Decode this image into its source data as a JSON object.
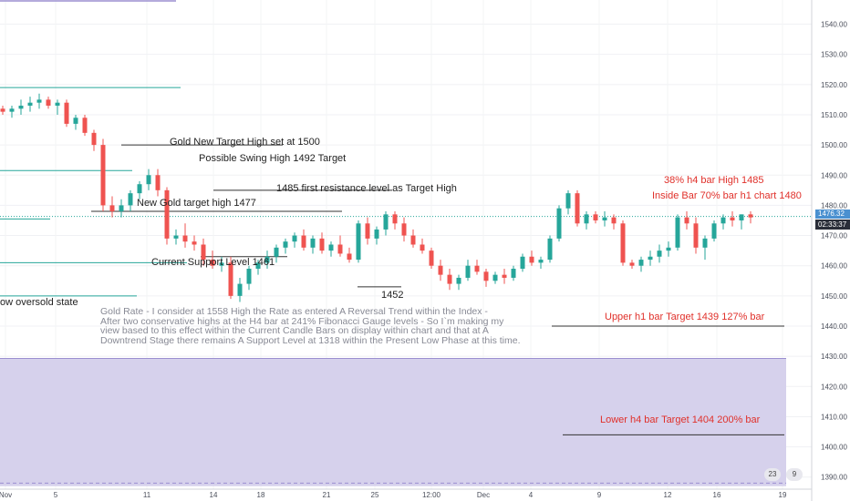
{
  "chart_data": {
    "type": "candlestick",
    "title": "",
    "y_axis": {
      "range": [
        1386,
        1548
      ],
      "ticks": [
        "1390.00",
        "1400.00",
        "1410.00",
        "1420.00",
        "1430.00",
        "1440.00",
        "1450.00",
        "1460.00",
        "1470.00",
        "1480.00",
        "1490.00",
        "1500.00",
        "1510.00",
        "1520.00",
        "1530.00",
        "1540.00"
      ]
    },
    "x_axis": {
      "ticks": [
        "Nov",
        "5",
        "11",
        "14",
        "18",
        "21",
        "25",
        "12:00",
        "Dec",
        "4",
        "9",
        "12",
        "16",
        "19"
      ]
    },
    "last_price": {
      "value": 1476.32,
      "label": "1476.32",
      "countdown": "02:33:37"
    },
    "candles": [
      [
        1512,
        1513,
        1510,
        1511
      ],
      [
        1511,
        1513,
        1509,
        1512
      ],
      [
        1512,
        1515,
        1510,
        1513
      ],
      [
        1513,
        1516,
        1511,
        1514
      ],
      [
        1514,
        1517,
        1512,
        1515
      ],
      [
        1515,
        1516,
        1512,
        1513
      ],
      [
        1513,
        1515,
        1510,
        1514
      ],
      [
        1514,
        1515,
        1506,
        1507
      ],
      [
        1507,
        1510,
        1505,
        1509
      ],
      [
        1509,
        1510,
        1503,
        1504
      ],
      [
        1504,
        1505,
        1498,
        1500
      ],
      [
        1500,
        1502,
        1478,
        1480
      ],
      [
        1480,
        1483,
        1476,
        1478
      ],
      [
        1478,
        1482,
        1476,
        1480
      ],
      [
        1480,
        1485,
        1478,
        1484
      ],
      [
        1484,
        1488,
        1482,
        1487
      ],
      [
        1487,
        1492,
        1485,
        1490
      ],
      [
        1490,
        1492,
        1483,
        1485
      ],
      [
        1485,
        1486,
        1467,
        1469
      ],
      [
        1469,
        1472,
        1467,
        1470
      ],
      [
        1470,
        1474,
        1466,
        1468
      ],
      [
        1468,
        1470,
        1465,
        1467
      ],
      [
        1467,
        1469,
        1460,
        1462
      ],
      [
        1462,
        1465,
        1459,
        1460
      ],
      [
        1460,
        1463,
        1458,
        1461
      ],
      [
        1461,
        1463,
        1449,
        1450
      ],
      [
        1450,
        1456,
        1448,
        1454
      ],
      [
        1454,
        1460,
        1452,
        1459
      ],
      [
        1459,
        1462,
        1457,
        1461
      ],
      [
        1461,
        1465,
        1459,
        1463
      ],
      [
        1463,
        1467,
        1461,
        1466
      ],
      [
        1466,
        1469,
        1464,
        1468
      ],
      [
        1468,
        1471,
        1466,
        1470
      ],
      [
        1470,
        1472,
        1465,
        1466
      ],
      [
        1466,
        1470,
        1464,
        1469
      ],
      [
        1469,
        1471,
        1464,
        1465
      ],
      [
        1465,
        1468,
        1463,
        1467
      ],
      [
        1467,
        1470,
        1463,
        1464
      ],
      [
        1464,
        1466,
        1461,
        1462
      ],
      [
        1462,
        1475,
        1461,
        1474
      ],
      [
        1474,
        1476,
        1467,
        1469
      ],
      [
        1469,
        1473,
        1467,
        1472
      ],
      [
        1472,
        1478,
        1470,
        1477
      ],
      [
        1477,
        1478,
        1472,
        1474
      ],
      [
        1474,
        1476,
        1468,
        1470
      ],
      [
        1470,
        1472,
        1466,
        1467
      ],
      [
        1467,
        1469,
        1464,
        1465
      ],
      [
        1465,
        1466,
        1459,
        1460
      ],
      [
        1460,
        1462,
        1455,
        1457
      ],
      [
        1457,
        1459,
        1452,
        1454
      ],
      [
        1454,
        1457,
        1452,
        1456
      ],
      [
        1456,
        1462,
        1455,
        1460
      ],
      [
        1460,
        1462,
        1457,
        1458
      ],
      [
        1458,
        1459,
        1453,
        1455
      ],
      [
        1455,
        1458,
        1454,
        1457
      ],
      [
        1457,
        1459,
        1454,
        1456
      ],
      [
        1456,
        1460,
        1455,
        1459
      ],
      [
        1459,
        1464,
        1458,
        1463
      ],
      [
        1463,
        1465,
        1460,
        1461
      ],
      [
        1461,
        1463,
        1459,
        1462
      ],
      [
        1462,
        1470,
        1461,
        1469
      ],
      [
        1469,
        1480,
        1468,
        1479
      ],
      [
        1479,
        1485,
        1477,
        1484
      ],
      [
        1484,
        1485,
        1473,
        1474
      ],
      [
        1474,
        1478,
        1472,
        1477
      ],
      [
        1477,
        1478,
        1474,
        1475
      ],
      [
        1475,
        1478,
        1473,
        1476
      ],
      [
        1476,
        1477,
        1472,
        1474
      ],
      [
        1474,
        1475,
        1460,
        1461
      ],
      [
        1461,
        1462,
        1459,
        1460
      ],
      [
        1460,
        1463,
        1458,
        1462
      ],
      [
        1462,
        1465,
        1460,
        1463
      ],
      [
        1463,
        1467,
        1461,
        1465
      ],
      [
        1465,
        1468,
        1463,
        1466
      ],
      [
        1466,
        1477,
        1465,
        1476
      ],
      [
        1476,
        1478,
        1472,
        1474
      ],
      [
        1474,
        1476,
        1464,
        1466
      ],
      [
        1466,
        1470,
        1462,
        1469
      ],
      [
        1469,
        1475,
        1468,
        1474
      ],
      [
        1474,
        1477,
        1472,
        1476
      ],
      [
        1476,
        1478,
        1473,
        1475
      ],
      [
        1475,
        1477,
        1472,
        1477
      ],
      [
        1477,
        1478,
        1474,
        1476
      ]
    ]
  },
  "annotations": {
    "gold_new_target": "Gold New Target High set at 1500",
    "swing_high": "Possible Swing High 1492 Target",
    "first_resistance": "1485 first resistance level as Target High",
    "new_gold_target": "New Gold target high 1477",
    "current_support": "Current Support Level 1461",
    "oversold": "ow oversold state",
    "low_1452": "1452",
    "h4_high": "38% h4 bar High 1485",
    "inside_bar": "Inside Bar 70% bar h1 chart 1480",
    "upper_h1": "Upper h1 bar Target 1439 127% bar",
    "lower_h4": "Lower h4 bar Target 1404 200% bar",
    "note": "Gold Rate - I consider at 1558 High the Rate as entered A Reversal Trend within the Index -\nAfter two conservative highs at the H4 bar at 241% Fibonacci Gauge levels - So I`m making my\nview based to this effect within the Current Candle Bars on display within chart and that at A\nDowntrend Stage there remains A Support Level at 1318 within the Present Low Phase at this time."
  },
  "colors": {
    "bull": "#26a69a",
    "bear": "#ef5350",
    "zone": "#d4cfeb",
    "annotation_red": "#e0302a",
    "price_tag": "#4a90d0"
  },
  "footer": {
    "badge1": "23",
    "badge2": "9"
  }
}
